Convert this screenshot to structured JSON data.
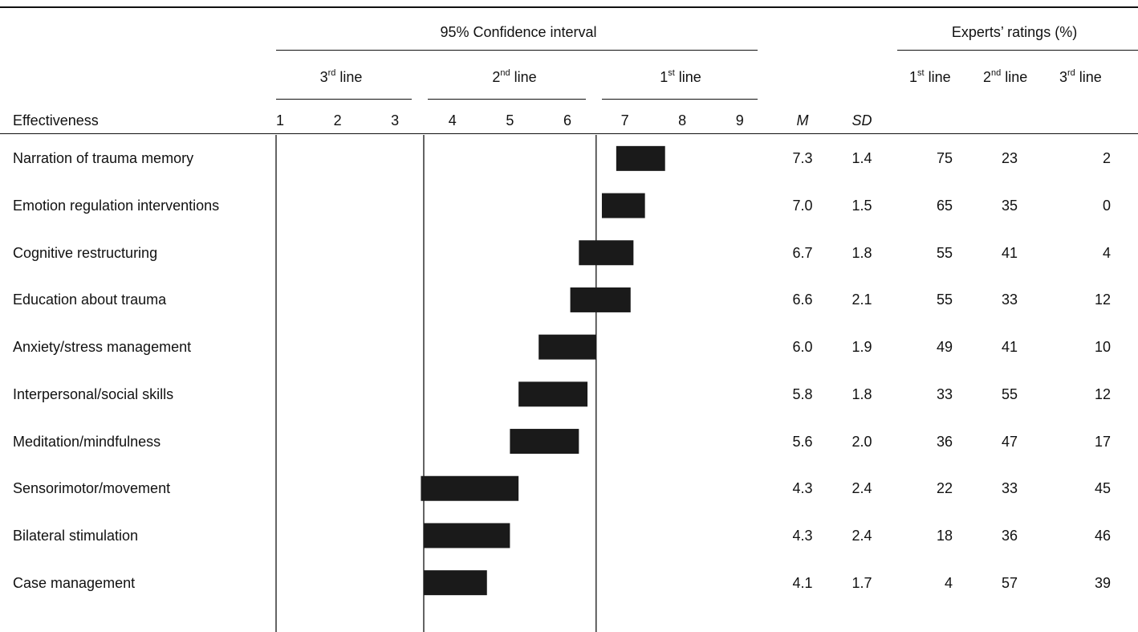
{
  "header": {
    "ci_title": "95% Confidence interval",
    "ratings_title": "Experts’ ratings (%)",
    "band_3rd": "3",
    "band_3rd_sup": "rd",
    "band_2nd": "2",
    "band_2nd_sup": "nd",
    "band_1st": "1",
    "band_1st_sup": "st",
    "line_word": " line",
    "row_label": "Effectiveness",
    "mean_label": "M",
    "sd_label": "SD"
  },
  "colors": {
    "bar": "#1a1a1a",
    "rule": "#111111",
    "text": "#111111"
  },
  "chart_data": {
    "type": "table",
    "x_ticks": [
      1,
      2,
      3,
      4,
      5,
      6,
      7,
      8,
      9
    ],
    "xlim": [
      1,
      9
    ],
    "divisions": [
      3.5,
      6.5
    ],
    "categories": [
      "Narration of trauma memory",
      "Emotion regulation interventions",
      "Cognitive restructuring",
      "Education about trauma",
      "Anxiety/stress management",
      "Interpersonal/social skills",
      "Meditation/mindfulness",
      "Sensorimotor/movement",
      "Bilateral stimulation",
      "Case management"
    ],
    "ci_low": [
      6.85,
      6.6,
      6.2,
      6.05,
      5.5,
      5.15,
      5.0,
      3.45,
      3.5,
      3.5
    ],
    "ci_high": [
      7.7,
      7.35,
      7.15,
      7.1,
      6.5,
      6.35,
      6.2,
      5.15,
      5.0,
      4.6
    ],
    "mean": [
      "7.3",
      "7.0",
      "6.7",
      "6.6",
      "6.0",
      "5.8",
      "5.6",
      "4.3",
      "4.3",
      "4.1"
    ],
    "sd": [
      "1.4",
      "1.5",
      "1.8",
      "2.1",
      "1.9",
      "1.8",
      "2.0",
      "2.4",
      "2.4",
      "1.7"
    ],
    "first_line": [
      "75",
      "65",
      "55",
      "55",
      "49",
      "33",
      "36",
      "22",
      "18",
      "4"
    ],
    "second_line": [
      "23",
      "35",
      "41",
      "33",
      "41",
      "55",
      "47",
      "33",
      "36",
      "57"
    ],
    "third_line": [
      "2",
      "0",
      "4",
      "12",
      "10",
      "12",
      "17",
      "45",
      "46",
      "39"
    ]
  }
}
